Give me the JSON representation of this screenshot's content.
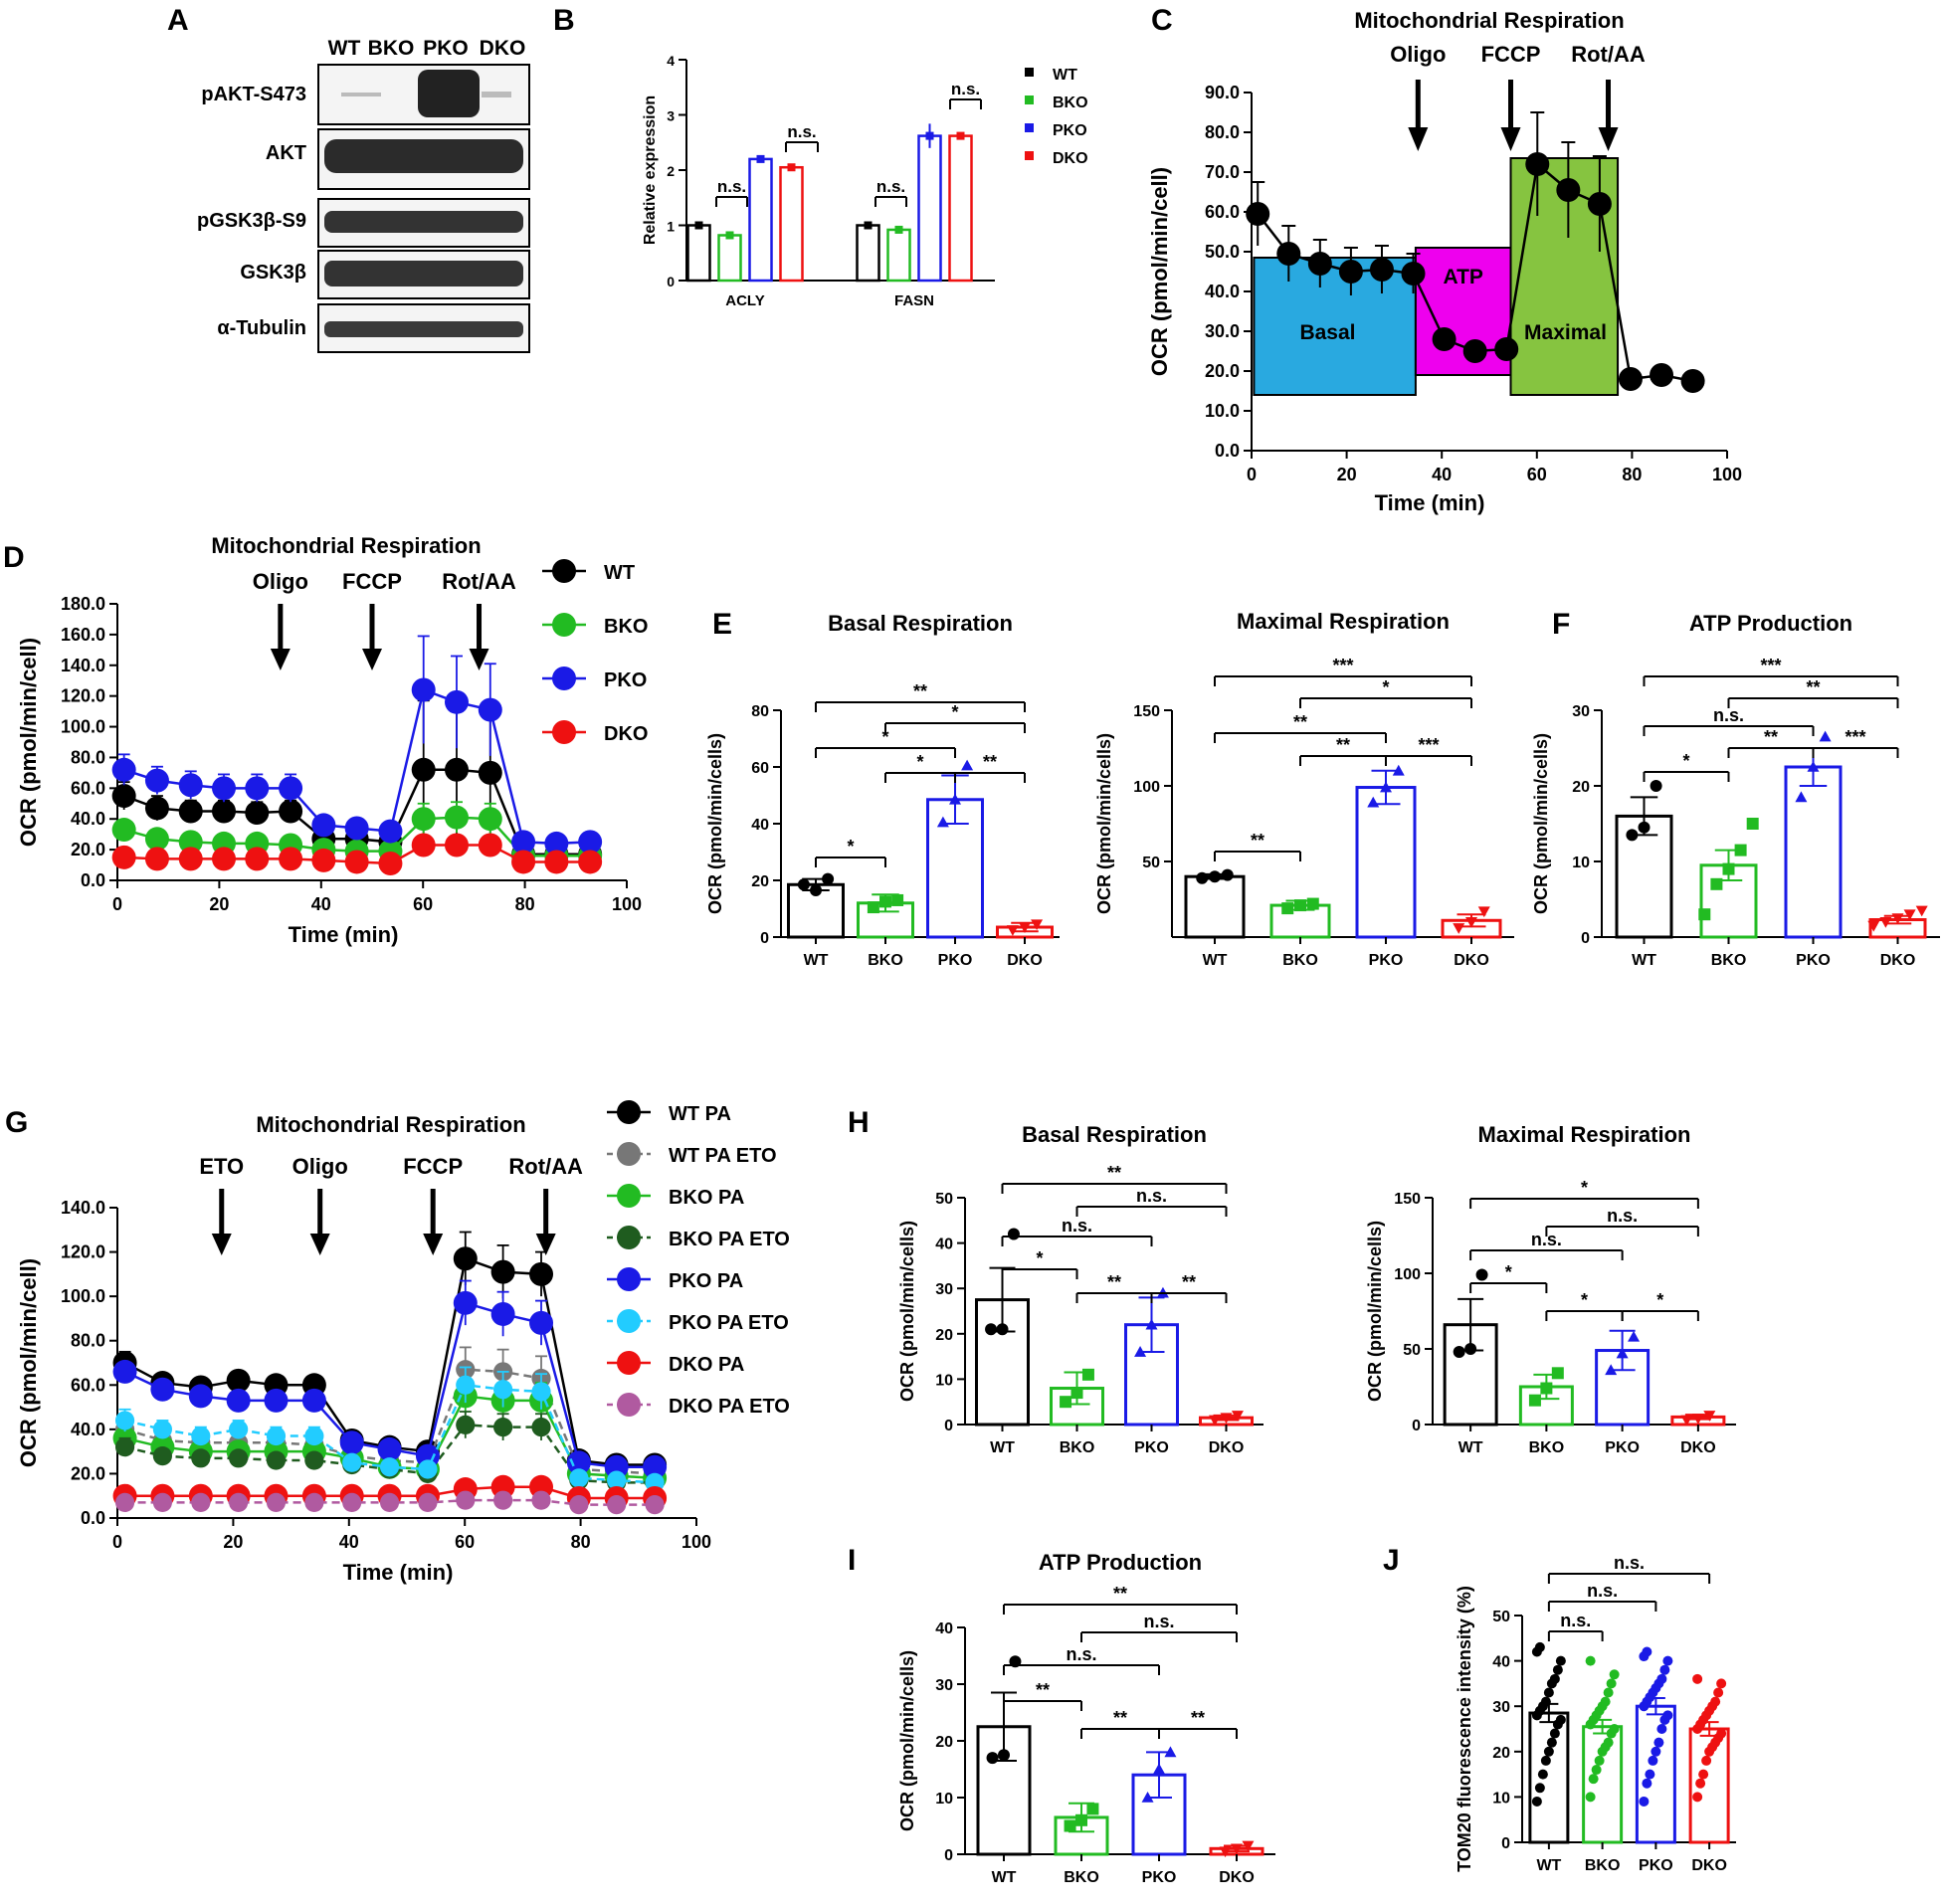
{
  "colors": {
    "wt": "#000000",
    "bko": "#22bb22",
    "pko": "#1a1ae6",
    "dko": "#ee1111",
    "wt_eto": "#777777",
    "bko_eto": "#1f5c1f",
    "pko_eto": "#22ccff",
    "dko_eto": "#b05aa0",
    "basal": "#29a9e0",
    "atp": "#ee00ee",
    "maximal": "#86c440"
  },
  "panel_letters": [
    "A",
    "B",
    "C",
    "D",
    "E",
    "F",
    "G",
    "H",
    "I",
    "J"
  ],
  "blot": {
    "lanes": [
      "WT",
      "BKO",
      "PKO",
      "DKO"
    ],
    "rows": [
      "pAKT-S473",
      "AKT",
      "pGSK3β-S9",
      "GSK3β",
      "α-Tubulin"
    ]
  },
  "chart_data": [
    {
      "id": "B",
      "type": "bar",
      "categories": [
        "ACLY",
        "FASN"
      ],
      "ylabel": "Relative expression",
      "ylim": [
        0,
        4
      ],
      "yticks": [
        "0",
        "1",
        "2",
        "3",
        "4"
      ],
      "series": [
        {
          "name": "WT",
          "values": [
            1.0,
            1.0
          ],
          "err": [
            0.05,
            0.05
          ]
        },
        {
          "name": "BKO",
          "values": [
            0.82,
            0.92
          ],
          "err": [
            0.04,
            0.04
          ]
        },
        {
          "name": "PKO",
          "values": [
            2.2,
            2.62
          ],
          "err": [
            0.05,
            0.22
          ]
        },
        {
          "name": "DKO",
          "values": [
            2.05,
            2.62
          ],
          "err": [
            0.05,
            0.06
          ]
        }
      ],
      "annotations": [
        "n.s.",
        "n.s.",
        "n.s.",
        "n.s."
      ]
    },
    {
      "id": "C",
      "type": "line",
      "title": "Mitochondrial Respiration",
      "xlabel": "Time (min)",
      "ylabel": "OCR (pmol/min/cell)",
      "xlim": [
        0,
        100
      ],
      "ylim": [
        0,
        90
      ],
      "xticks": [
        "0",
        "20",
        "40",
        "60",
        "80",
        "100"
      ],
      "yticks": [
        "0.0",
        "10.0",
        "20.0",
        "30.0",
        "40.0",
        "50.0",
        "60.0",
        "70.0",
        "80.0",
        "90.0"
      ],
      "injections": [
        "Oligo",
        "FCCP",
        "Rot/AA"
      ],
      "regions": [
        "Basal",
        "ATP",
        "Maximal"
      ],
      "x": [
        1.3,
        7.8,
        14.4,
        20.9,
        27.4,
        34.0,
        40.5,
        47.0,
        53.6,
        60.1,
        66.6,
        73.2,
        79.7,
        86.2,
        92.8
      ],
      "y": [
        59.5,
        49.5,
        47,
        45,
        45.5,
        44.5,
        28,
        25,
        25.5,
        72,
        65.5,
        62,
        18,
        19,
        17.5
      ],
      "err": [
        8,
        7,
        6,
        6,
        6,
        5,
        0,
        0,
        0,
        13,
        12,
        12,
        0,
        0,
        0
      ]
    },
    {
      "id": "D",
      "type": "line",
      "title": "Mitochondrial Respiration",
      "xlabel": "Time (min)",
      "ylabel": "OCR (pmol/min/cell)",
      "xlim": [
        0,
        100
      ],
      "ylim": [
        0,
        180
      ],
      "xticks": [
        "0",
        "20",
        "40",
        "60",
        "80",
        "100"
      ],
      "yticks": [
        "0.0",
        "20.0",
        "40.0",
        "60.0",
        "80.0",
        "100.0",
        "120.0",
        "140.0",
        "160.0",
        "180.0"
      ],
      "injections": [
        "Oligo",
        "FCCP",
        "Rot/AA"
      ],
      "x": [
        1.3,
        7.8,
        14.4,
        20.9,
        27.4,
        34.0,
        40.5,
        47.0,
        53.6,
        60.1,
        66.6,
        73.2,
        79.7,
        86.2,
        92.8
      ],
      "series": [
        {
          "name": "WT",
          "values": [
            55,
            47,
            45,
            45,
            44,
            45,
            27,
            27,
            25,
            72,
            72,
            70,
            17,
            17,
            17
          ],
          "err": [
            9,
            8,
            7,
            7,
            7,
            7,
            4,
            4,
            4,
            45,
            45,
            45,
            3,
            3,
            3
          ]
        },
        {
          "name": "BKO",
          "values": [
            33,
            27,
            25,
            24,
            24,
            23,
            20,
            19,
            19,
            40,
            41,
            40,
            16,
            16,
            16
          ],
          "err": [
            6,
            5,
            5,
            5,
            5,
            5,
            4,
            4,
            4,
            10,
            10,
            10,
            3,
            3,
            3
          ]
        },
        {
          "name": "PKO",
          "values": [
            72,
            65,
            62,
            60,
            60,
            60,
            36,
            34,
            32,
            124,
            116,
            111,
            25,
            24,
            25
          ],
          "err": [
            10,
            9,
            9,
            9,
            9,
            9,
            5,
            5,
            5,
            35,
            30,
            30,
            4,
            4,
            4
          ]
        },
        {
          "name": "DKO",
          "values": [
            15,
            14,
            14,
            14,
            14,
            14,
            13,
            12,
            11,
            23,
            23,
            23,
            12,
            12,
            12
          ],
          "err": [
            3,
            3,
            3,
            3,
            3,
            3,
            2,
            2,
            2,
            3,
            3,
            3,
            2,
            2,
            2
          ]
        }
      ]
    },
    {
      "id": "E1",
      "type": "bar",
      "title": "Basal Respiration",
      "ylabel": "OCR (pmol/min/cells)",
      "categories": [
        "WT",
        "BKO",
        "PKO",
        "DKO"
      ],
      "values": [
        18.5,
        12,
        48.5,
        3.5
      ],
      "err": [
        2,
        3,
        8.5,
        1.5
      ],
      "ylim": [
        0,
        80
      ],
      "yticks": [
        "0",
        "20",
        "40",
        "60",
        "80"
      ],
      "points": [
        [
          18.5,
          16.5,
          20.5
        ],
        [
          10.5,
          12.5,
          13
        ],
        [
          40.5,
          48.5,
          60.5
        ],
        [
          2.5,
          3.5,
          4.5
        ]
      ],
      "annotations": [
        "**",
        "*",
        "*",
        "*",
        "**",
        "*"
      ]
    },
    {
      "id": "E2",
      "type": "bar",
      "title": "Maximal Respiration",
      "ylabel": "OCR (pmol/min/cells)",
      "categories": [
        "WT",
        "BKO",
        "PKO",
        "DKO"
      ],
      "values": [
        40,
        21,
        99,
        11
      ],
      "err": [
        1.5,
        3,
        11,
        4
      ],
      "ylim": [
        0,
        150
      ],
      "yticks": [
        "50",
        "100",
        "150"
      ],
      "points": [
        [
          39,
          40,
          41
        ],
        [
          19,
          21,
          22
        ],
        [
          89,
          99,
          110
        ],
        [
          6,
          10,
          17
        ]
      ],
      "annotations": [
        "***",
        "*",
        "**",
        "**",
        "***",
        "**"
      ]
    },
    {
      "id": "F",
      "type": "bar",
      "title": "ATP Production",
      "ylabel": "OCR (pmol/min/cells)",
      "categories": [
        "WT",
        "BKO",
        "PKO",
        "DKO"
      ],
      "values": [
        16,
        9.5,
        22.5,
        2.3
      ],
      "err": [
        2.5,
        2,
        2.5,
        0.5
      ],
      "ylim": [
        0,
        30
      ],
      "yticks": [
        "0",
        "10",
        "20",
        "30"
      ],
      "points": [
        [
          13.5,
          14.5,
          20
        ],
        [
          3,
          7,
          9,
          11.5,
          15
        ],
        [
          18.5,
          22.5,
          26.5
        ],
        [
          1.5,
          2,
          2.5,
          3,
          3.5
        ]
      ],
      "annotations": [
        "***",
        "**",
        "n.s.",
        "*",
        "**",
        "***"
      ]
    },
    {
      "id": "G",
      "type": "line",
      "title": "Mitochondrial Respiration",
      "xlabel": "Time (min)",
      "ylabel": "OCR (pmol/min/cell)",
      "xlim": [
        0,
        100
      ],
      "ylim": [
        0,
        140
      ],
      "xticks": [
        "0",
        "20",
        "40",
        "60",
        "80",
        "100"
      ],
      "yticks": [
        "0.0",
        "20.0",
        "40.0",
        "60.0",
        "80.0",
        "100.0",
        "120.0",
        "140.0"
      ],
      "injections": [
        "ETO",
        "Oligo",
        "FCCP",
        "Rot/AA"
      ],
      "x": [
        1.3,
        7.8,
        14.4,
        20.9,
        27.4,
        34.0,
        40.5,
        47.0,
        53.6,
        60.1,
        66.6,
        73.2,
        79.7,
        86.2,
        92.8
      ],
      "series": [
        {
          "name": "WT PA",
          "values": [
            70,
            61,
            59,
            62,
            60,
            60,
            35,
            32,
            30,
            117,
            111,
            110,
            26,
            24,
            24
          ],
          "err": [
            5,
            4,
            3,
            3,
            3,
            3,
            3,
            3,
            3,
            12,
            12,
            10,
            3,
            3,
            3
          ]
        },
        {
          "name": "WT PA ETO",
          "values": [
            40,
            35,
            34,
            34,
            34,
            33,
            28,
            26,
            25,
            67,
            66,
            63,
            22,
            21,
            20
          ],
          "err": [
            4,
            4,
            4,
            4,
            4,
            4,
            3,
            3,
            3,
            10,
            10,
            10,
            3,
            3,
            3
          ]
        },
        {
          "name": "BKO PA",
          "values": [
            36,
            32,
            30,
            30,
            30,
            30,
            27,
            23,
            22,
            55,
            53,
            53,
            20,
            19,
            18
          ],
          "err": [
            4,
            3,
            3,
            3,
            3,
            3,
            3,
            3,
            3,
            8,
            8,
            8,
            3,
            3,
            3
          ]
        },
        {
          "name": "BKO PA ETO",
          "values": [
            32,
            28,
            27,
            27,
            26,
            26,
            24,
            22,
            20,
            42,
            41,
            41,
            17,
            16,
            16
          ],
          "err": [
            4,
            3,
            3,
            3,
            3,
            3,
            3,
            3,
            3,
            6,
            6,
            6,
            3,
            3,
            3
          ]
        },
        {
          "name": "PKO PA",
          "values": [
            66,
            58,
            55,
            53,
            53,
            53,
            34,
            31,
            28,
            97,
            92,
            88,
            25,
            23,
            23
          ],
          "err": [
            4,
            4,
            3,
            3,
            3,
            3,
            3,
            3,
            3,
            10,
            10,
            10,
            3,
            3,
            3
          ]
        },
        {
          "name": "PKO PA ETO",
          "values": [
            44,
            40,
            37,
            40,
            37,
            37,
            25,
            23,
            22,
            60,
            58,
            57,
            18,
            17,
            16
          ],
          "err": [
            5,
            4,
            4,
            4,
            4,
            4,
            3,
            3,
            3,
            8,
            8,
            8,
            3,
            3,
            3
          ]
        },
        {
          "name": "DKO PA",
          "values": [
            10,
            10,
            10,
            10,
            10,
            10,
            10,
            10,
            10,
            13,
            14,
            14,
            9,
            9,
            9
          ],
          "err": [
            2,
            2,
            2,
            2,
            2,
            2,
            2,
            2,
            2,
            2,
            2,
            2,
            2,
            2,
            2
          ]
        },
        {
          "name": "DKO PA ETO",
          "values": [
            7,
            7,
            7,
            7,
            7,
            7,
            7,
            7,
            7,
            8,
            8,
            8,
            6,
            6,
            6
          ],
          "err": [
            2,
            2,
            2,
            2,
            2,
            2,
            2,
            2,
            2,
            2,
            2,
            2,
            2,
            2,
            2
          ]
        }
      ]
    },
    {
      "id": "H1",
      "type": "bar",
      "title": "Basal Respiration",
      "ylabel": "OCR (pmol/min/cells)",
      "categories": [
        "WT",
        "BKO",
        "PKO",
        "DKO"
      ],
      "values": [
        27.5,
        8,
        22,
        1.5
      ],
      "err": [
        7,
        3.5,
        6,
        0.5
      ],
      "ylim": [
        0,
        50
      ],
      "yticks": [
        "0",
        "10",
        "20",
        "30",
        "40",
        "50"
      ],
      "points": [
        [
          21,
          21,
          42
        ],
        [
          5,
          7,
          11
        ],
        [
          16,
          22,
          29
        ],
        [
          1,
          1.5,
          2
        ]
      ],
      "annotations": [
        "**",
        "n.s.",
        "n.s.",
        "*",
        "**",
        "**"
      ]
    },
    {
      "id": "H2",
      "type": "bar",
      "title": "Maximal Respiration",
      "ylabel": "OCR (pmol/min/cells)",
      "categories": [
        "WT",
        "BKO",
        "PKO",
        "DKO"
      ],
      "values": [
        66,
        25,
        49,
        5
      ],
      "err": [
        17,
        8,
        13,
        1.5
      ],
      "ylim": [
        0,
        150
      ],
      "yticks": [
        "0",
        "50",
        "100",
        "150"
      ],
      "points": [
        [
          48,
          50,
          99
        ],
        [
          16,
          24,
          34
        ],
        [
          36,
          47,
          58
        ],
        [
          3,
          4,
          6
        ]
      ],
      "annotations": [
        "*",
        "n.s.",
        "n.s.",
        "*",
        "*",
        "*"
      ]
    },
    {
      "id": "I",
      "type": "bar",
      "title": "ATP Production",
      "ylabel": "OCR (pmol/min/cells)",
      "categories": [
        "WT",
        "BKO",
        "PKO",
        "DKO"
      ],
      "values": [
        22.5,
        6.5,
        14,
        1
      ],
      "err": [
        6,
        2.5,
        4,
        0.5
      ],
      "ylim": [
        0,
        40
      ],
      "yticks": [
        "0",
        "10",
        "20",
        "30",
        "40"
      ],
      "points": [
        [
          17,
          17.5,
          34
        ],
        [
          5,
          6,
          8
        ],
        [
          10,
          15,
          18
        ],
        [
          0.5,
          1,
          1.5
        ]
      ],
      "annotations": [
        "**",
        "n.s.",
        "n.s.",
        "**",
        "**",
        "**"
      ]
    },
    {
      "id": "J",
      "type": "bar",
      "ylabel": "TOM20 fluorescence intensity (%)",
      "categories": [
        "WT",
        "BKO",
        "PKO",
        "DKO"
      ],
      "values": [
        28.5,
        25.5,
        30,
        25
      ],
      "err": [
        2,
        1.5,
        1.8,
        1.5
      ],
      "ylim": [
        0,
        50
      ],
      "yticks": [
        "0",
        "10",
        "20",
        "30",
        "40",
        "50"
      ],
      "annotations": [
        "n.s.",
        "n.s.",
        "n.s."
      ]
    }
  ]
}
